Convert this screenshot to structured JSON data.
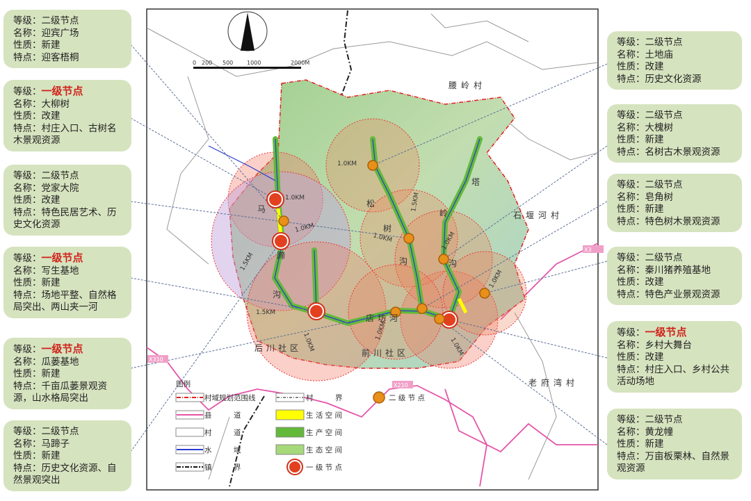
{
  "field_labels": {
    "level": "等级：",
    "name": "名称：",
    "nature": "性质：",
    "feature": "特点："
  },
  "left_callouts": [
    {
      "level": "二级节点",
      "primary": false,
      "name": "迎宾广场",
      "nature": "新建",
      "feature": "迎客梧桐"
    },
    {
      "level": "一级节点",
      "primary": true,
      "name": "大柳树",
      "nature": "改建",
      "feature": "村庄入口、古树名木景观资源"
    },
    {
      "level": "二级节点",
      "primary": false,
      "name": "党家大院",
      "nature": "改建",
      "feature": "特色民居艺术、历史文化资源"
    },
    {
      "level": "一级节点",
      "primary": true,
      "name": "写生基地",
      "nature": "新建",
      "feature": "场地平整、自然格局突出、两山夹一河"
    },
    {
      "level": "一级节点",
      "primary": true,
      "name": "瓜蒌基地",
      "nature": "新建",
      "feature": "千亩瓜蒌景观资源，山水格局突出"
    },
    {
      "level": "二级节点",
      "primary": false,
      "name": "马蹄子",
      "nature": "新建",
      "feature": "历史文化资源、自然景观突出"
    }
  ],
  "right_callouts": [
    {
      "level": "二级节点",
      "primary": false,
      "name": "土地庙",
      "nature": "改建",
      "feature": "历史文化资源"
    },
    {
      "level": "二级节点",
      "primary": false,
      "name": "大槐树",
      "nature": "新建",
      "feature": "名树古木景观资源"
    },
    {
      "level": "二级节点",
      "primary": false,
      "name": "皂角树",
      "nature": "新建",
      "feature": "特色树木景观资源"
    },
    {
      "level": "二级节点",
      "primary": false,
      "name": "秦川猪养殖基地",
      "nature": "改建",
      "feature": "特色产业景观资源"
    },
    {
      "level": "一级节点",
      "primary": true,
      "name": "乡村大舞台",
      "nature": "改建",
      "feature": "村庄入口、乡村公共活动场地"
    },
    {
      "level": "二级节点",
      "primary": false,
      "name": "黄龙幢",
      "nature": "新建",
      "feature": "万亩板栗林、自然景观资源"
    }
  ],
  "map": {
    "scale_ticks": [
      "0",
      "200",
      "500",
      "1000",
      "2000M"
    ],
    "village_labels": [
      "腰岭村",
      "石堰河村",
      "老府湾村"
    ],
    "valley_chars": [
      "马",
      "蹄",
      "沟",
      "松",
      "树",
      "沟",
      "塔",
      "岭",
      "沟"
    ],
    "place_labels": [
      "店坊河",
      "后川社区",
      "前川社区"
    ],
    "road_labels": [
      "X310",
      "X210",
      "X3"
    ],
    "distance_labels": [
      "1.0KM",
      "1.0KM",
      "1.0KM",
      "1.0KM",
      "1.5KM",
      "1.5KM",
      "1.0KM",
      "1.0KM",
      "1.5KM",
      "1.0KM",
      "1.0KM",
      "1.0KM"
    ]
  },
  "legend": {
    "title": "图例",
    "items": [
      "村域规划范围线",
      "县　　　道",
      "村　　　道",
      "水　　　域",
      "镇　　　界",
      "村　　　界",
      "生 活 空 间",
      "生 产 空 间",
      "生 态 空 间",
      "一 级 节 点",
      "二 级 节 点"
    ]
  },
  "colors": {
    "box_bg": "#d6e3bf",
    "primary_text": "#d0231c",
    "primary_node": "#e2401f",
    "secondary_node": "#e8901a",
    "county_road": "#e455a8",
    "water": "#2a3bd0",
    "living": "#ffff00",
    "production": "#63b93a",
    "ecology": "#a6d97a"
  }
}
